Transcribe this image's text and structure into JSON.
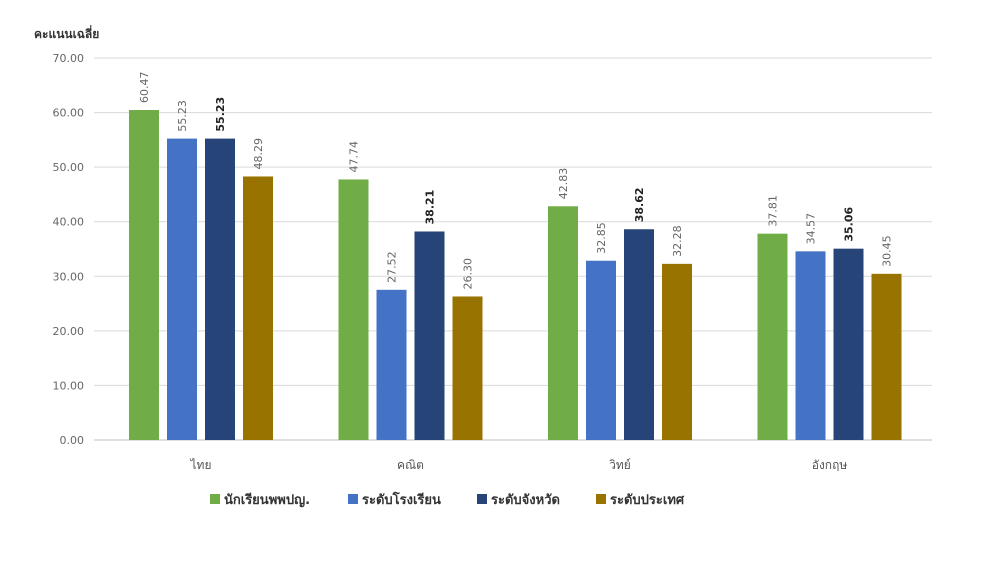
{
  "chart_data": {
    "type": "bar",
    "ylabel": "คะแนนเฉลี่ย",
    "ylim": [
      0,
      70
    ],
    "yticks": [
      "0.00",
      "10.00",
      "20.00",
      "30.00",
      "40.00",
      "50.00",
      "60.00",
      "70.00"
    ],
    "categories": [
      "ไทย",
      "คณิต",
      "วิทย์",
      "อังกฤษ"
    ],
    "series": [
      {
        "name": "นักเรียนพพปญ.",
        "color": "#70ad47",
        "values": [
          60.47,
          47.74,
          42.83,
          37.81
        ],
        "labels": [
          "60.47",
          "47.74",
          "42.83",
          "37.81"
        ]
      },
      {
        "name": "ระดับโรงเรียน",
        "color": "#4472c4",
        "values": [
          55.23,
          27.52,
          32.85,
          34.57
        ],
        "labels": [
          "55.23",
          "27.52",
          "32.85",
          "34.57"
        ]
      },
      {
        "name": "ระดับจังหวัด",
        "color": "#264478",
        "values": [
          55.23,
          38.21,
          38.62,
          35.06
        ],
        "labels": [
          "55.23",
          "38.21",
          "38.62",
          "35.06"
        ]
      },
      {
        "name": "ระดับประเทศ",
        "color": "#997300",
        "values": [
          48.29,
          26.3,
          32.28,
          30.45
        ],
        "labels": [
          "48.29",
          "26.30",
          "32.28",
          "30.45"
        ]
      }
    ],
    "grid": true,
    "legend": "bottom"
  }
}
